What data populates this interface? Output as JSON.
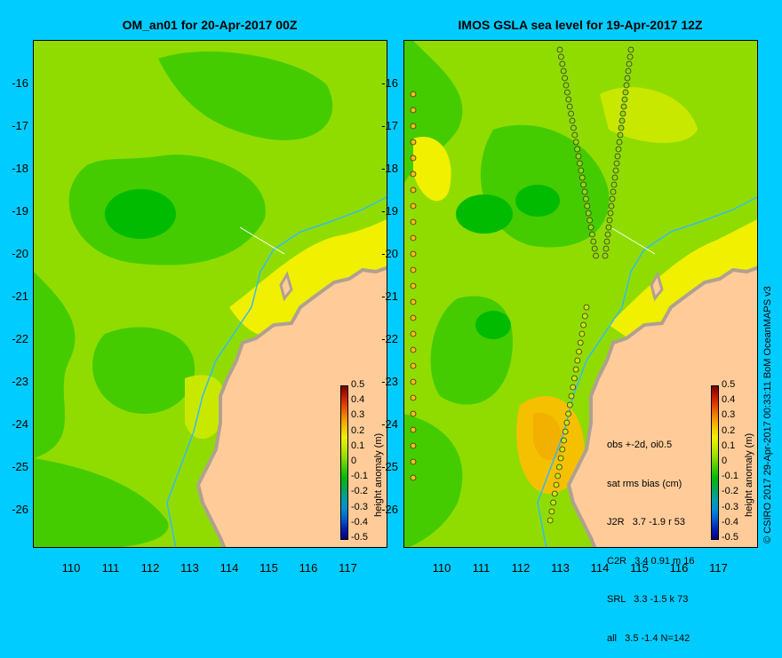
{
  "left_panel": {
    "title": "OM_an01 for 20-Apr-2017 00Z"
  },
  "right_panel": {
    "title": "IMOS GSLA sea level  for 19-Apr-2017 12Z"
  },
  "lat_ticks": [
    "-16",
    "-17",
    "-18",
    "-19",
    "-20",
    "-21",
    "-22",
    "-23",
    "-24",
    "-25",
    "-26"
  ],
  "lon_ticks": [
    "110",
    "111",
    "112",
    "113",
    "114",
    "115",
    "116",
    "117"
  ],
  "colorbar": {
    "labels": [
      "0.5",
      "0.4",
      "0.3",
      "0.2",
      "0.1",
      "0",
      "-0.1",
      "-0.2",
      "-0.3",
      "-0.4",
      "-0.5"
    ],
    "axis_label": "height anomaly (m)",
    "colors": [
      "#7a0000",
      "#c41800",
      "#e64a00",
      "#f28a00",
      "#f5c000",
      "#f0f000",
      "#c8e800",
      "#90dc00",
      "#44cc00",
      "#00bb00",
      "#00a850",
      "#00a0a0",
      "#0090d0",
      "#0060d0",
      "#0020b0",
      "#000080"
    ]
  },
  "stats": {
    "line1": "obs +-2d, oi0.5",
    "line2": "sat rms bias (cm)",
    "rows": [
      "J2R   3.7 -1.9 r 53",
      "C2R   3.4 0.91 m 16",
      "SRL   3.3 -1.5 k 73",
      "all   3.5 -1.4 N=142"
    ]
  },
  "credit": "© CSIRO 2017  29-Apr-2017 00:33:11 BoM OceanMAPS v3",
  "colors": {
    "background": "#00ccff",
    "land": "#ffcc99",
    "coast": "#b0a090",
    "isobath": "#33bbee"
  }
}
